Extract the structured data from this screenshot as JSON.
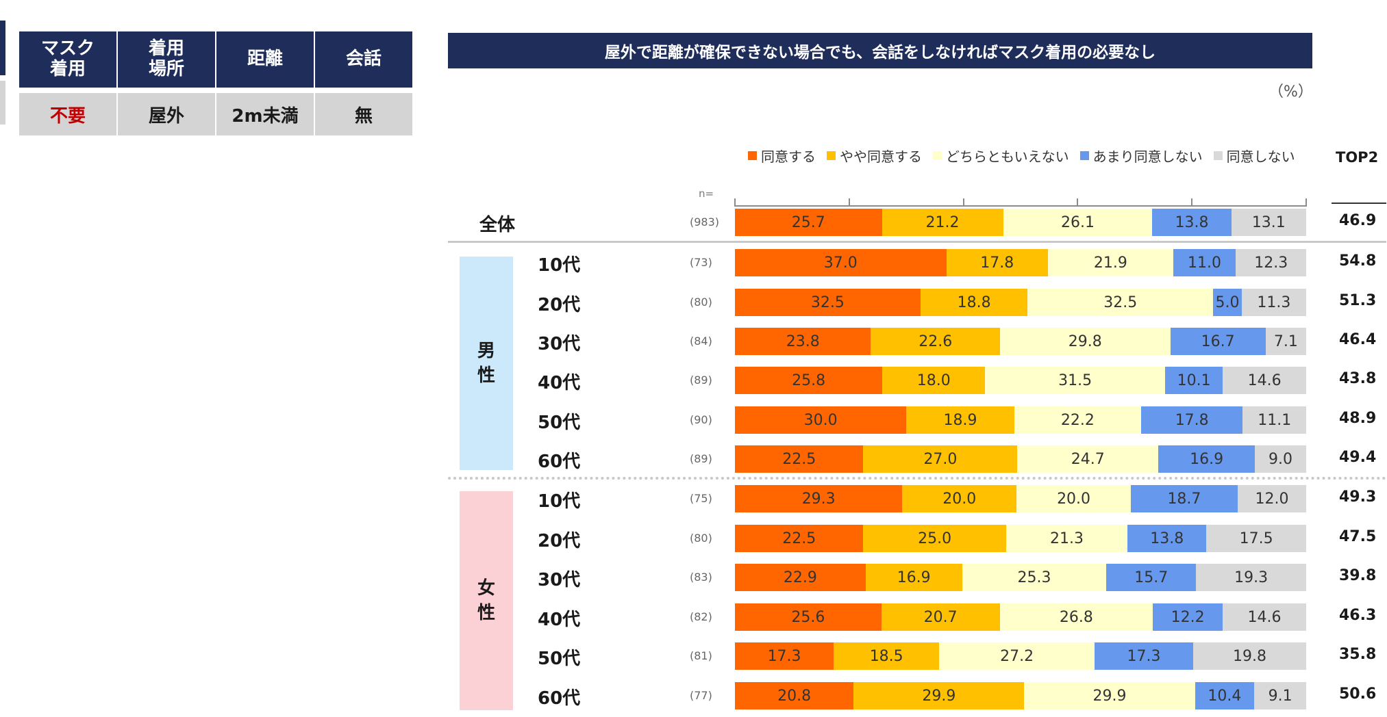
{
  "condition_table": {
    "headers": [
      "マスク\n着用",
      "着用\n場所",
      "距離",
      "会話"
    ],
    "values": [
      "不要",
      "屋外",
      "2m未満",
      "無"
    ],
    "first_value_color": "#c00000"
  },
  "chart_data": {
    "type": "bar",
    "orientation": "horizontal-stacked-100",
    "title": "屋外で距離が確保できない場合でも、会話をしなければマスク着用の必要なし",
    "unit": "（%）",
    "n_label": "n=",
    "top2_label": "TOP2",
    "categories": [
      "同意する",
      "やや同意する",
      "どちらともいえない",
      "あまり同意しない",
      "同意しない"
    ],
    "colors": [
      "#ff6600",
      "#ffc000",
      "#ffffcc",
      "#6699ee",
      "#d9d9d9"
    ],
    "groups": [
      {
        "name": "",
        "label": ""
      },
      {
        "name": "male",
        "label": "男\n性"
      },
      {
        "name": "female",
        "label": "女\n性"
      }
    ],
    "rows": [
      {
        "label": "全体",
        "n": "(983)",
        "values": [
          25.7,
          21.2,
          26.1,
          13.8,
          13.1
        ],
        "top2": "46.9",
        "group": 0
      },
      {
        "label": "10代",
        "n": "(73)",
        "values": [
          37.0,
          17.8,
          21.9,
          11.0,
          12.3
        ],
        "top2": "54.8",
        "group": 1
      },
      {
        "label": "20代",
        "n": "(80)",
        "values": [
          32.5,
          18.8,
          32.5,
          5.0,
          11.3
        ],
        "top2": "51.3",
        "group": 1
      },
      {
        "label": "30代",
        "n": "(84)",
        "values": [
          23.8,
          22.6,
          29.8,
          16.7,
          7.1
        ],
        "top2": "46.4",
        "group": 1
      },
      {
        "label": "40代",
        "n": "(89)",
        "values": [
          25.8,
          18.0,
          31.5,
          10.1,
          14.6
        ],
        "top2": "43.8",
        "group": 1
      },
      {
        "label": "50代",
        "n": "(90)",
        "values": [
          30.0,
          18.9,
          22.2,
          17.8,
          11.1
        ],
        "top2": "48.9",
        "group": 1
      },
      {
        "label": "60代",
        "n": "(89)",
        "values": [
          22.5,
          27.0,
          24.7,
          16.9,
          9.0
        ],
        "top2": "49.4",
        "group": 1
      },
      {
        "label": "10代",
        "n": "(75)",
        "values": [
          29.3,
          20.0,
          20.0,
          18.7,
          12.0
        ],
        "top2": "49.3",
        "group": 2
      },
      {
        "label": "20代",
        "n": "(80)",
        "values": [
          22.5,
          25.0,
          21.3,
          13.8,
          17.5
        ],
        "top2": "47.5",
        "group": 2
      },
      {
        "label": "30代",
        "n": "(83)",
        "values": [
          22.9,
          16.9,
          25.3,
          15.7,
          19.3
        ],
        "top2": "39.8",
        "group": 2
      },
      {
        "label": "40代",
        "n": "(82)",
        "values": [
          25.6,
          20.7,
          26.8,
          12.2,
          14.6
        ],
        "top2": "46.3",
        "group": 2
      },
      {
        "label": "50代",
        "n": "(81)",
        "values": [
          17.3,
          18.5,
          27.2,
          17.3,
          19.8
        ],
        "top2": "35.8",
        "group": 2
      },
      {
        "label": "60代",
        "n": "(77)",
        "values": [
          20.8,
          29.9,
          29.9,
          10.4,
          9.1
        ],
        "top2": "50.6",
        "group": 2
      }
    ],
    "xlim": [
      0,
      100
    ],
    "ticks": [
      0,
      20,
      40,
      60,
      80,
      100
    ]
  }
}
